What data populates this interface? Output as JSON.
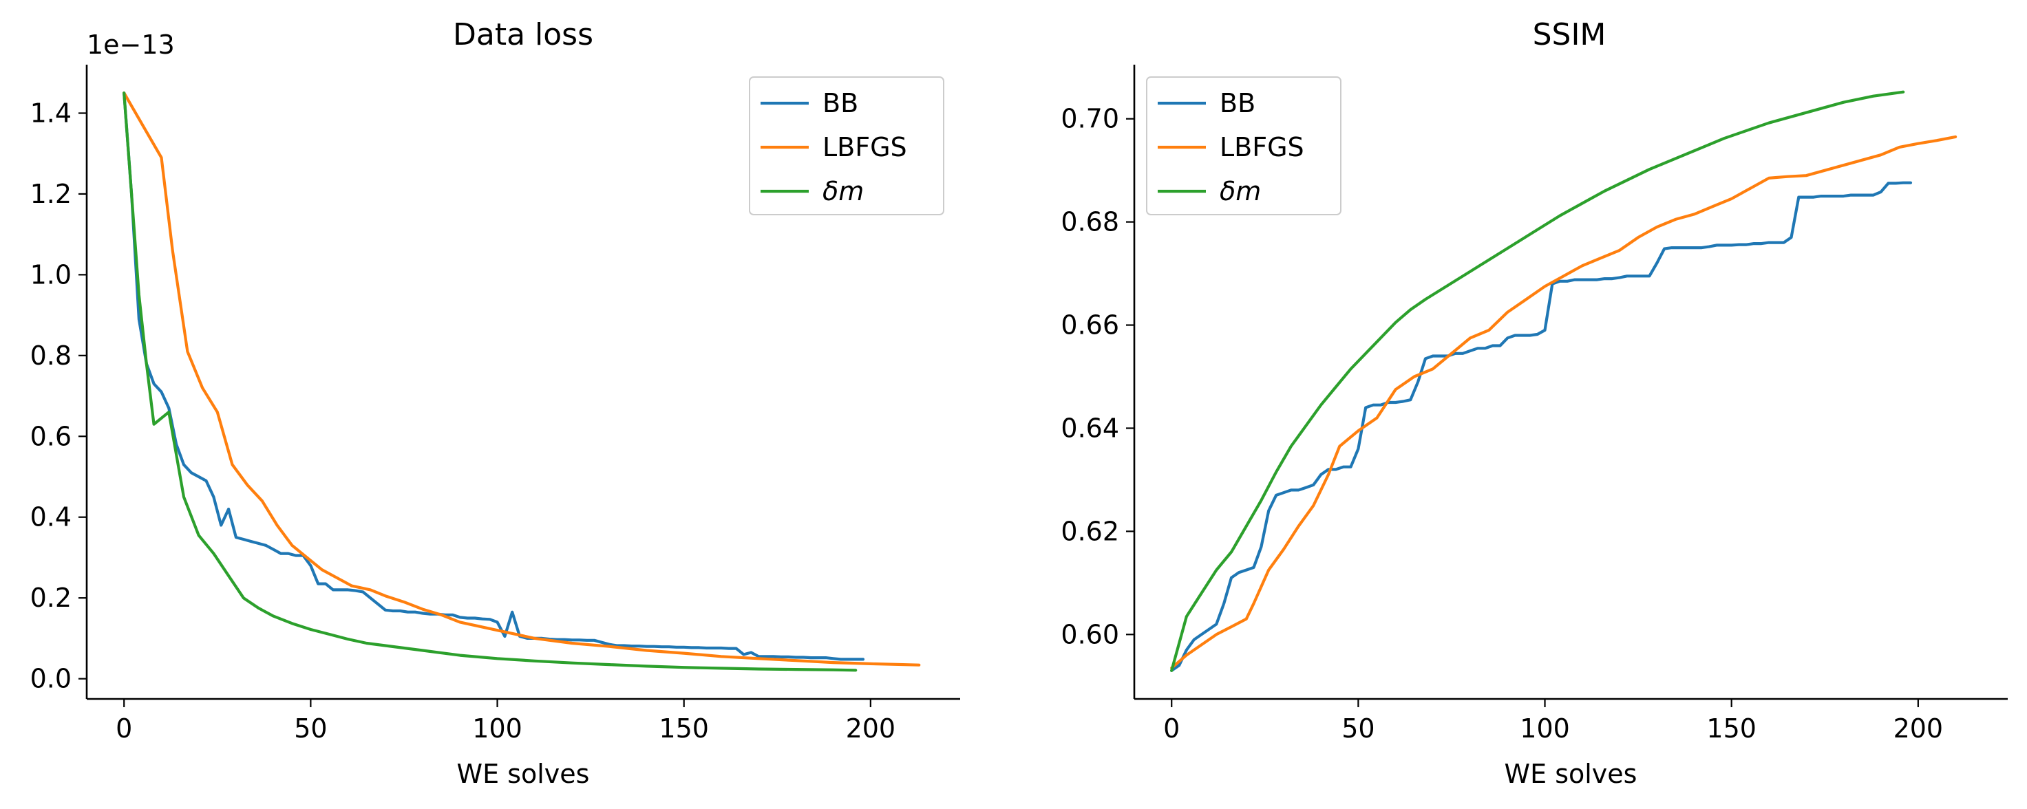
{
  "chart_data": [
    {
      "type": "line",
      "title": "Data loss",
      "xlabel": "WE solves",
      "ylabel": "",
      "y_offset_text": "1e−13",
      "xlim": [
        -10,
        224
      ],
      "ylim": [
        -0.05,
        1.52
      ],
      "xticks": [
        0,
        50,
        100,
        150,
        200
      ],
      "yticks": [
        0.0,
        0.2,
        0.4,
        0.6,
        0.8,
        1.0,
        1.2,
        1.4
      ],
      "ytick_labels": [
        "0.0",
        "0.2",
        "0.4",
        "0.6",
        "0.8",
        "1.0",
        "1.2",
        "1.4"
      ],
      "legend": "top-right",
      "grid": false,
      "series": [
        {
          "name": "BB",
          "color": "#1f77b4",
          "x": [
            0,
            2,
            4,
            6,
            8,
            10,
            12,
            14,
            16,
            18,
            20,
            22,
            24,
            26,
            28,
            30,
            32,
            34,
            36,
            38,
            40,
            42,
            44,
            46,
            48,
            50,
            52,
            54,
            56,
            58,
            60,
            62,
            64,
            66,
            68,
            70,
            72,
            74,
            76,
            78,
            80,
            82,
            84,
            86,
            88,
            90,
            92,
            94,
            96,
            98,
            100,
            102,
            104,
            106,
            108,
            110,
            112,
            114,
            116,
            118,
            120,
            122,
            124,
            126,
            128,
            130,
            132,
            134,
            136,
            138,
            140,
            142,
            144,
            146,
            148,
            150,
            152,
            154,
            156,
            158,
            160,
            162,
            164,
            166,
            168,
            170,
            172,
            174,
            176,
            178,
            180,
            182,
            184,
            186,
            188,
            190,
            192,
            194,
            196,
            198
          ],
          "y": [
            1.45,
            1.2,
            0.89,
            0.78,
            0.73,
            0.71,
            0.67,
            0.58,
            0.53,
            0.51,
            0.5,
            0.49,
            0.45,
            0.38,
            0.42,
            0.35,
            0.345,
            0.34,
            0.335,
            0.33,
            0.32,
            0.31,
            0.31,
            0.305,
            0.305,
            0.28,
            0.235,
            0.235,
            0.22,
            0.22,
            0.22,
            0.218,
            0.215,
            0.2,
            0.185,
            0.17,
            0.168,
            0.168,
            0.165,
            0.165,
            0.162,
            0.16,
            0.16,
            0.158,
            0.158,
            0.152,
            0.15,
            0.15,
            0.148,
            0.147,
            0.14,
            0.105,
            0.165,
            0.105,
            0.1,
            0.1,
            0.1,
            0.098,
            0.097,
            0.097,
            0.096,
            0.096,
            0.095,
            0.095,
            0.09,
            0.085,
            0.082,
            0.082,
            0.081,
            0.081,
            0.08,
            0.08,
            0.079,
            0.079,
            0.078,
            0.078,
            0.077,
            0.077,
            0.076,
            0.076,
            0.076,
            0.075,
            0.075,
            0.06,
            0.065,
            0.055,
            0.055,
            0.055,
            0.054,
            0.054,
            0.053,
            0.053,
            0.052,
            0.052,
            0.052,
            0.05,
            0.048,
            0.048,
            0.048,
            0.048
          ]
        },
        {
          "name": "LBFGS",
          "color": "#ff7f0e",
          "x": [
            0,
            5,
            10,
            13,
            17,
            21,
            25,
            29,
            33,
            37,
            41,
            45,
            49,
            53,
            57,
            61,
            66,
            70,
            75,
            80,
            85,
            90,
            95,
            100,
            110,
            120,
            130,
            140,
            150,
            160,
            170,
            180,
            190,
            200,
            213
          ],
          "y": [
            1.45,
            1.37,
            1.29,
            1.06,
            0.81,
            0.72,
            0.66,
            0.53,
            0.48,
            0.44,
            0.38,
            0.33,
            0.3,
            0.27,
            0.25,
            0.23,
            0.22,
            0.205,
            0.19,
            0.172,
            0.158,
            0.14,
            0.13,
            0.12,
            0.1,
            0.088,
            0.08,
            0.07,
            0.063,
            0.055,
            0.05,
            0.045,
            0.04,
            0.037,
            0.034
          ]
        },
        {
          "name": "δm",
          "color": "#2ca02c",
          "x": [
            0,
            2,
            4,
            6,
            8,
            12,
            16,
            20,
            24,
            28,
            32,
            36,
            40,
            45,
            50,
            55,
            60,
            65,
            70,
            80,
            90,
            100,
            110,
            120,
            130,
            140,
            150,
            160,
            170,
            180,
            190,
            196
          ],
          "y": [
            1.45,
            1.2,
            0.95,
            0.78,
            0.63,
            0.66,
            0.45,
            0.355,
            0.31,
            0.255,
            0.2,
            0.175,
            0.155,
            0.137,
            0.122,
            0.11,
            0.098,
            0.088,
            0.082,
            0.07,
            0.058,
            0.05,
            0.044,
            0.039,
            0.035,
            0.031,
            0.028,
            0.026,
            0.024,
            0.023,
            0.022,
            0.021
          ]
        }
      ]
    },
    {
      "type": "line",
      "title": "SSIM",
      "xlabel": "WE solves",
      "ylabel": "",
      "xlim": [
        -10,
        224
      ],
      "ylim": [
        0.5875,
        0.7105
      ],
      "xticks": [
        0,
        50,
        100,
        150,
        200
      ],
      "yticks": [
        0.6,
        0.62,
        0.64,
        0.66,
        0.68,
        0.7
      ],
      "ytick_labels": [
        "0.60",
        "0.62",
        "0.64",
        "0.66",
        "0.68",
        "0.70"
      ],
      "legend": "top-left",
      "grid": false,
      "series": [
        {
          "name": "BB",
          "color": "#1f77b4",
          "x": [
            0,
            2,
            4,
            6,
            8,
            10,
            12,
            14,
            16,
            18,
            20,
            22,
            24,
            26,
            28,
            30,
            32,
            34,
            36,
            38,
            40,
            42,
            44,
            46,
            48,
            50,
            52,
            54,
            56,
            58,
            60,
            62,
            64,
            66,
            68,
            70,
            72,
            74,
            76,
            78,
            80,
            82,
            84,
            86,
            88,
            90,
            92,
            94,
            96,
            98,
            100,
            102,
            104,
            106,
            108,
            110,
            112,
            114,
            116,
            118,
            120,
            122,
            124,
            126,
            128,
            130,
            132,
            134,
            136,
            138,
            140,
            142,
            144,
            146,
            148,
            150,
            152,
            154,
            156,
            158,
            160,
            162,
            164,
            166,
            168,
            170,
            172,
            174,
            176,
            178,
            180,
            182,
            184,
            186,
            188,
            190,
            192,
            194,
            196,
            198
          ],
          "y": [
            0.593,
            0.594,
            0.597,
            0.599,
            0.6,
            0.601,
            0.602,
            0.606,
            0.611,
            0.612,
            0.6125,
            0.613,
            0.617,
            0.624,
            0.627,
            0.6275,
            0.628,
            0.628,
            0.6285,
            0.629,
            0.631,
            0.632,
            0.632,
            0.6325,
            0.6325,
            0.636,
            0.644,
            0.6445,
            0.6445,
            0.645,
            0.645,
            0.6452,
            0.6455,
            0.649,
            0.6535,
            0.654,
            0.654,
            0.654,
            0.6545,
            0.6545,
            0.655,
            0.6555,
            0.6555,
            0.656,
            0.656,
            0.6575,
            0.658,
            0.658,
            0.658,
            0.6582,
            0.659,
            0.668,
            0.6685,
            0.6685,
            0.6688,
            0.6688,
            0.6688,
            0.6688,
            0.669,
            0.669,
            0.6692,
            0.6695,
            0.6695,
            0.6695,
            0.6695,
            0.672,
            0.6748,
            0.675,
            0.675,
            0.675,
            0.675,
            0.675,
            0.6752,
            0.6755,
            0.6755,
            0.6755,
            0.6756,
            0.6756,
            0.6758,
            0.6758,
            0.676,
            0.676,
            0.676,
            0.677,
            0.6848,
            0.6848,
            0.6848,
            0.685,
            0.685,
            0.685,
            0.685,
            0.6852,
            0.6852,
            0.6852,
            0.6852,
            0.6858,
            0.6875,
            0.6875,
            0.6876,
            0.6876
          ]
        },
        {
          "name": "LBFGS",
          "color": "#ff7f0e",
          "x": [
            0,
            4,
            8,
            12,
            16,
            20,
            22,
            26,
            30,
            34,
            38,
            42,
            45,
            50,
            55,
            60,
            65,
            70,
            75,
            80,
            85,
            90,
            95,
            100,
            105,
            110,
            115,
            120,
            125,
            130,
            135,
            140,
            145,
            150,
            155,
            160,
            165,
            170,
            175,
            180,
            185,
            190,
            195,
            200,
            205,
            210
          ],
          "y": [
            0.5935,
            0.596,
            0.598,
            0.6,
            0.6015,
            0.603,
            0.606,
            0.6125,
            0.6165,
            0.621,
            0.625,
            0.631,
            0.6365,
            0.6395,
            0.642,
            0.6475,
            0.65,
            0.6515,
            0.6545,
            0.6575,
            0.659,
            0.6625,
            0.665,
            0.6675,
            0.6695,
            0.6715,
            0.673,
            0.6745,
            0.677,
            0.679,
            0.6805,
            0.6815,
            0.683,
            0.6845,
            0.6865,
            0.6885,
            0.6888,
            0.689,
            0.69,
            0.691,
            0.692,
            0.693,
            0.6945,
            0.6952,
            0.6958,
            0.6965
          ]
        },
        {
          "name": "δm",
          "color": "#2ca02c",
          "x": [
            0,
            4,
            8,
            12,
            16,
            20,
            24,
            28,
            32,
            36,
            40,
            44,
            48,
            52,
            56,
            60,
            64,
            68,
            72,
            76,
            80,
            84,
            88,
            92,
            96,
            100,
            104,
            108,
            112,
            116,
            120,
            124,
            128,
            132,
            136,
            140,
            144,
            148,
            152,
            156,
            160,
            164,
            168,
            172,
            176,
            180,
            184,
            188,
            192,
            196
          ],
          "y": [
            0.593,
            0.6035,
            0.608,
            0.6125,
            0.616,
            0.621,
            0.626,
            0.6315,
            0.6365,
            0.6405,
            0.6445,
            0.648,
            0.6515,
            0.6545,
            0.6575,
            0.6605,
            0.663,
            0.665,
            0.6668,
            0.6686,
            0.6704,
            0.6722,
            0.674,
            0.6758,
            0.6776,
            0.6794,
            0.6812,
            0.6828,
            0.6844,
            0.686,
            0.6874,
            0.6888,
            0.6902,
            0.6914,
            0.6926,
            0.6938,
            0.695,
            0.6962,
            0.6972,
            0.6982,
            0.6992,
            0.7,
            0.7008,
            0.7016,
            0.7024,
            0.7032,
            0.7038,
            0.7044,
            0.7048,
            0.7052
          ]
        }
      ]
    }
  ]
}
